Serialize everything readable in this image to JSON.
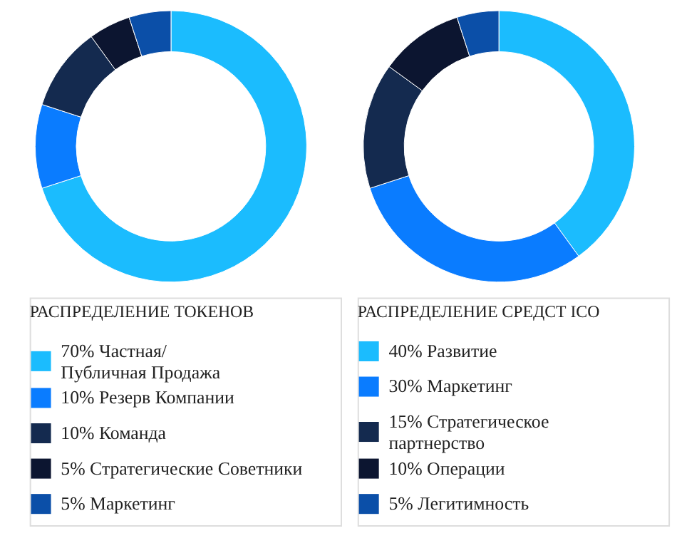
{
  "chart_data": [
    {
      "type": "donut",
      "legend_title": "РАСПРЕДЕЛЕНИЕ ТОКЕНОВ",
      "legend": "bottom",
      "categories": [
        "70% Частная/\nПубличная Продажа",
        "10% Резерв Компании",
        "10% Команда",
        "5% Стратегические Советники",
        "5% Маркетинг"
      ],
      "values": [
        70,
        10,
        10,
        5,
        5
      ],
      "colors": [
        "#1bbcfe",
        "#0a7cff",
        "#142a4f",
        "#0c1530",
        "#0b4fa8"
      ]
    },
    {
      "type": "donut",
      "legend_title": "РАСПРЕДЕЛЕНИЕ СРЕДСТ ICO",
      "legend": "bottom",
      "categories": [
        "40% Развитие",
        "30% Маркетинг",
        "15% Стратегическое\nпартнерство",
        "10% Операции",
        "5% Легитимность"
      ],
      "values": [
        40,
        30,
        15,
        10,
        5
      ],
      "colors": [
        "#1bbcfe",
        "#0a7cff",
        "#142a4f",
        "#0c1530",
        "#0b4fa8"
      ]
    }
  ]
}
